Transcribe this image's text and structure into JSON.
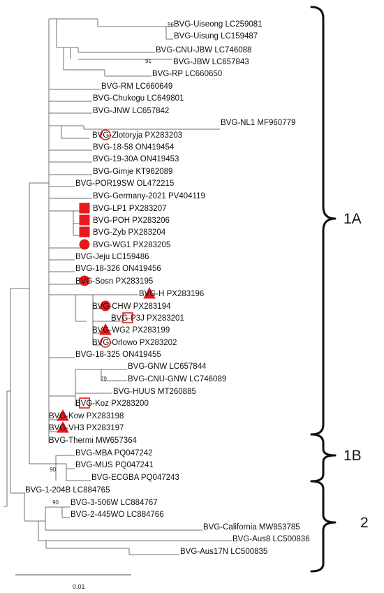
{
  "marker_color": "#e8191d",
  "leaves": [
    {
      "id": "uiseong",
      "label": "BVG-Uiseong LC259081",
      "marker": null
    },
    {
      "id": "uisung",
      "label": "BVG-Uisung LC159487",
      "marker": null
    },
    {
      "id": "cnujbw",
      "label": "BVG-CNU-JBW LC746088",
      "marker": null
    },
    {
      "id": "jbw",
      "label": "BVG-JBW LC657843",
      "marker": null
    },
    {
      "id": "rp",
      "label": "BVG-RP LC660650",
      "marker": null
    },
    {
      "id": "rm",
      "label": "BVG-RM LC660649",
      "marker": null
    },
    {
      "id": "chukogu",
      "label": "BVG-Chukogu LC649801",
      "marker": null
    },
    {
      "id": "jnw",
      "label": "BVG-JNW LC657842",
      "marker": null
    },
    {
      "id": "nl1",
      "label": "BVG-NL1 MF960779",
      "marker": null
    },
    {
      "id": "zlotoryja",
      "label": "BVG-Zlotoryja PX283203",
      "marker": "circle-open"
    },
    {
      "id": "b1858",
      "label": "BVG-18-58 ON419454",
      "marker": null
    },
    {
      "id": "b1930a",
      "label": "BVG-19-30A ON419453",
      "marker": null
    },
    {
      "id": "gimje",
      "label": "BVG-Gimje KT962089",
      "marker": null
    },
    {
      "id": "por19sw",
      "label": "BVG-POR19SW OL472215",
      "marker": null
    },
    {
      "id": "germany",
      "label": "BVG-Germany-2021 PV404119",
      "marker": null
    },
    {
      "id": "lp1",
      "label": "BVG-LP1 PX283207",
      "marker": "square-filled"
    },
    {
      "id": "poh",
      "label": "BVG-POH PX283206",
      "marker": "square-filled"
    },
    {
      "id": "zyb",
      "label": "BVG-Zyb PX283204",
      "marker": "square-filled"
    },
    {
      "id": "wg1",
      "label": "BVG-WG1 PX283205",
      "marker": "circle-filled"
    },
    {
      "id": "jeju",
      "label": "BVG-Jeju LC159486",
      "marker": null
    },
    {
      "id": "b18326",
      "label": "BVG-18-326 ON419456",
      "marker": null
    },
    {
      "id": "sosn",
      "label": "BVG-Sosn PX283195",
      "marker": "circle-filled"
    },
    {
      "id": "h",
      "label": "BVG-H PX283196",
      "marker": "triangle-filled"
    },
    {
      "id": "chw",
      "label": "BVG-CHW PX283194",
      "marker": "circle-filled"
    },
    {
      "id": "p3j",
      "label": "BVG-P3J PX283201",
      "marker": "square-open"
    },
    {
      "id": "wg2",
      "label": "BVG-WG2 PX283199",
      "marker": "triangle-filled"
    },
    {
      "id": "orlowo",
      "label": "BVG-Orlowo PX283202",
      "marker": "circle-open"
    },
    {
      "id": "b18325",
      "label": "BVG-18-325 ON419455",
      "marker": null
    },
    {
      "id": "gnw",
      "label": "BVG-GNW LC657844",
      "marker": null
    },
    {
      "id": "cnugnw",
      "label": "BVG-CNU-GNW LC746089",
      "marker": null
    },
    {
      "id": "huus",
      "label": "BVG-HUUS MT260885",
      "marker": null
    },
    {
      "id": "koz",
      "label": "BVG-Koz PX283200",
      "marker": "square-open"
    },
    {
      "id": "kow",
      "label": "BVG-Kow PX283198",
      "marker": "triangle-filled"
    },
    {
      "id": "vh3",
      "label": "BVG-VH3 PX283197",
      "marker": "triangle-filled"
    },
    {
      "id": "thermi",
      "label": "BVG-Thermi MW657364",
      "marker": null
    },
    {
      "id": "mba",
      "label": "BVG-MBA PQ047242",
      "marker": null
    },
    {
      "id": "mus",
      "label": "BVG-MUS PQ047241",
      "marker": null
    },
    {
      "id": "ecgba",
      "label": "BVG-ECGBA PQ047243",
      "marker": null
    },
    {
      "id": "b1204b",
      "label": "BVG-1-204B LC884765",
      "marker": null
    },
    {
      "id": "b3506w",
      "label": "BVG-3-506W LC884767",
      "marker": null
    },
    {
      "id": "b2445wo",
      "label": "BVG-2-445WO LC884766",
      "marker": null
    },
    {
      "id": "california",
      "label": "BVG-California MW853785",
      "marker": null
    },
    {
      "id": "aus8",
      "label": "BVG-Aus8 LC500836",
      "marker": null
    },
    {
      "id": "aus17n",
      "label": "BVG-Aus17N LC500835",
      "marker": null
    }
  ],
  "bootstrap_values": [
    {
      "node": "uiseong-uisung",
      "value": "96"
    },
    {
      "node": "cnujbw-jbw",
      "value": "91"
    },
    {
      "node": "gnw-cnugnw",
      "value": "79"
    },
    {
      "node": "mus-ecgba",
      "value": "90"
    },
    {
      "node": "b3506w-b2445wo",
      "value": "90"
    }
  ],
  "clades": [
    {
      "id": "1a",
      "label": "1A"
    },
    {
      "id": "1b",
      "label": "1B"
    },
    {
      "id": "2",
      "label": "2"
    }
  ],
  "scale_bar": {
    "label": "0.01"
  }
}
